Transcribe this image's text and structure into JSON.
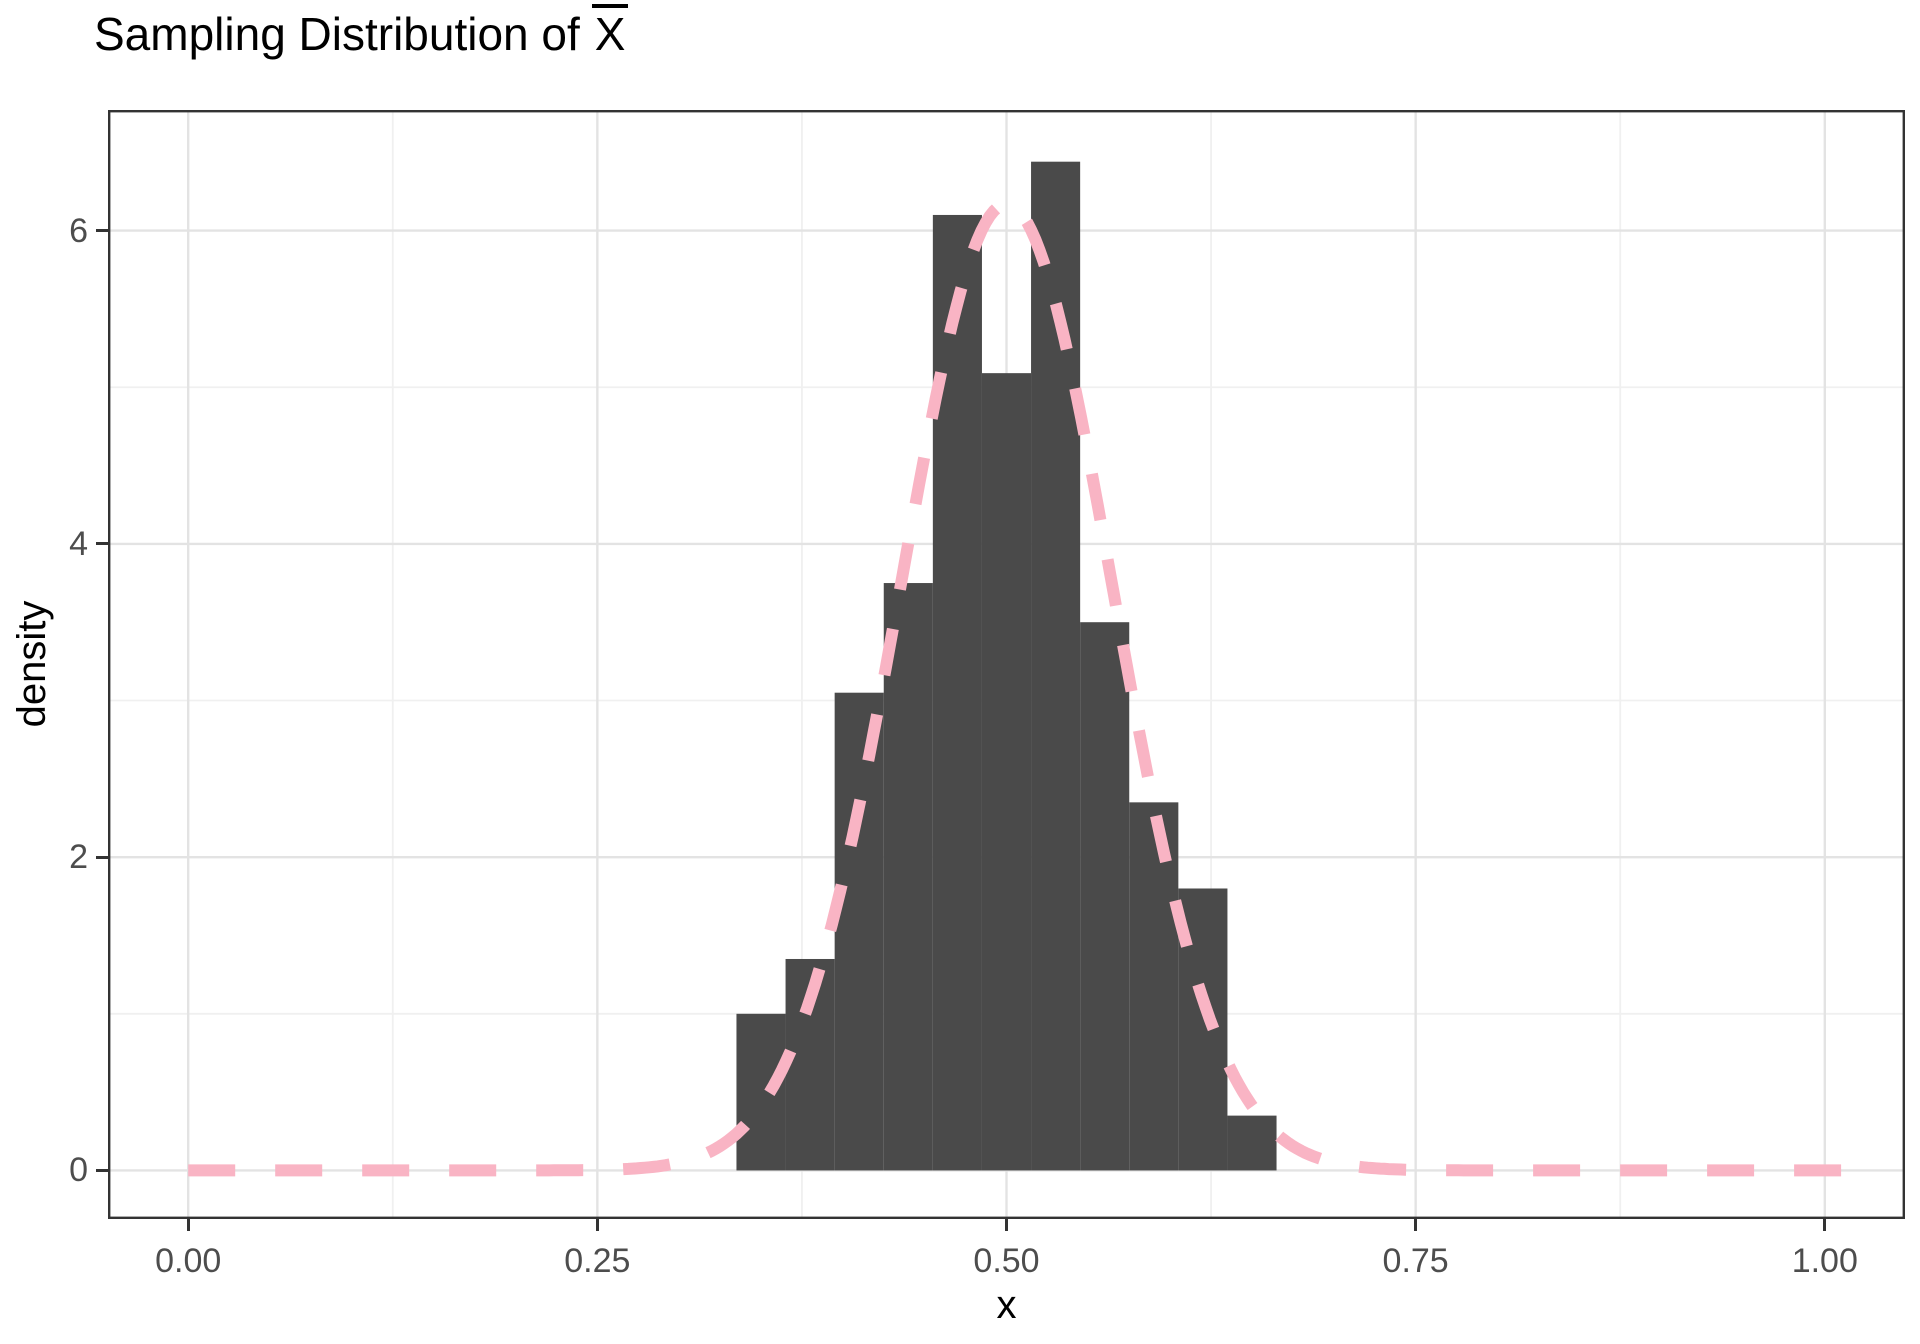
{
  "title": {
    "prefix": "Sampling Distribution of",
    "symbol": "X",
    "symbol_has_overline": true
  },
  "axes": {
    "x": {
      "label": "x",
      "ticks": [
        {
          "value": 0.0,
          "label": "0.00"
        },
        {
          "value": 0.25,
          "label": "0.25"
        },
        {
          "value": 0.5,
          "label": "0.50"
        },
        {
          "value": 0.75,
          "label": "0.75"
        },
        {
          "value": 1.0,
          "label": "1.00"
        }
      ],
      "minor_ticks": [
        0.125,
        0.375,
        0.625,
        0.875
      ],
      "domain": [
        -0.049,
        1.049
      ]
    },
    "y": {
      "label": "density",
      "ticks": [
        {
          "value": 0,
          "label": "0"
        },
        {
          "value": 2,
          "label": "2"
        },
        {
          "value": 4,
          "label": "4"
        },
        {
          "value": 6,
          "label": "6"
        }
      ],
      "minor_ticks": [
        1,
        3,
        5
      ],
      "domain": [
        -0.31,
        6.77
      ]
    }
  },
  "chart_data": {
    "type": "bar",
    "subtype": "histogram-with-normal-curve",
    "title": "Sampling Distribution of X̄",
    "xlabel": "x",
    "ylabel": "density",
    "x_domain": [
      -0.049,
      1.049
    ],
    "y_domain": [
      -0.31,
      6.77
    ],
    "grid": {
      "major_x": [
        0.0,
        0.25,
        0.5,
        0.75,
        1.0
      ],
      "minor_x": [
        0.125,
        0.375,
        0.625,
        0.875
      ],
      "major_y": [
        0,
        2,
        4,
        6
      ],
      "minor_y": [
        1,
        3,
        5
      ],
      "legend": "none"
    },
    "histogram": {
      "bin_width": 0.03,
      "bin_edges": [
        0.335,
        0.365,
        0.395,
        0.425,
        0.455,
        0.485,
        0.515,
        0.545,
        0.575,
        0.605,
        0.635,
        0.665
      ],
      "densities": [
        1.0,
        1.35,
        3.05,
        3.75,
        6.1,
        5.09,
        6.44,
        3.5,
        2.35,
        1.8,
        0.35
      ],
      "fill": "#4a4a4a"
    },
    "normal_curve": {
      "mean": 0.5,
      "sd": 0.0645,
      "peak_density": 6.17,
      "x_start": 0.0,
      "x_end": 1.015,
      "color": "#f9b4c4",
      "style": "dashed",
      "stroke_width": 12,
      "dash_pattern": [
        47,
        40
      ]
    }
  },
  "colors": {
    "background": "#ffffff",
    "panel_background": "#ffffff",
    "panel_border": "#333333",
    "grid_major": "#e3e3e3",
    "grid_minor": "#f0f0f0",
    "tick_mark": "#333333",
    "tick_label": "#4d4d4d",
    "text": "#000000",
    "bar_fill": "#4a4a4a",
    "curve_pink": "#f9b4c4"
  }
}
